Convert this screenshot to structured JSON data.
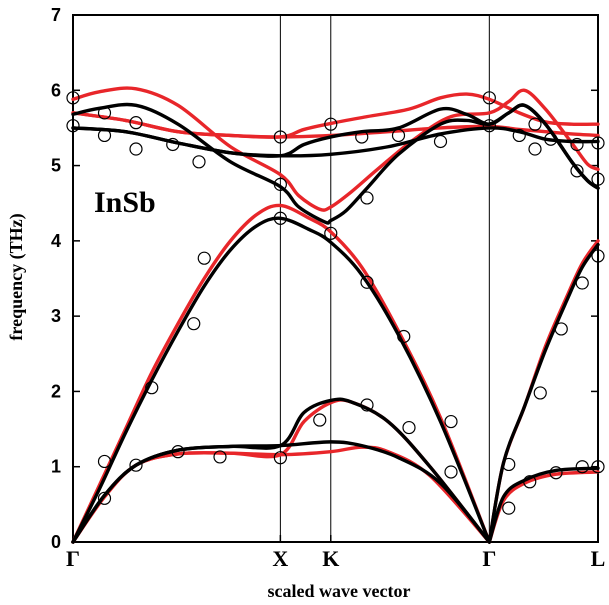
{
  "chart_data": {
    "type": "line",
    "title": "",
    "xlabel": "scaled wave vector",
    "ylabel": "frequency (THz)",
    "annotation": "InSb",
    "ylim": [
      0,
      7
    ],
    "yticks": [
      0,
      1,
      2,
      3,
      4,
      5,
      6,
      7
    ],
    "xlim": [
      0,
      1
    ],
    "xticks": [
      {
        "label": "Γ",
        "x": 0.0
      },
      {
        "label": "X",
        "x": 0.395
      },
      {
        "label": "K",
        "x": 0.491
      },
      {
        "label": "Γ",
        "x": 0.793
      },
      {
        "label": "L",
        "x": 1.0
      }
    ],
    "vlines": [
      0.395,
      0.491,
      0.793
    ],
    "colors": {
      "black_curve": "#000000",
      "red_curve": "#e8262a",
      "marker": "#000000"
    },
    "series": [
      {
        "color": "black",
        "values": [
          [
            0,
            0
          ],
          [
            0.06,
            0.62
          ],
          [
            0.12,
            1.02
          ],
          [
            0.2,
            1.22
          ],
          [
            0.3,
            1.27
          ],
          [
            0.395,
            1.28
          ],
          [
            0.491,
            1.33
          ],
          [
            0.55,
            1.28
          ],
          [
            0.62,
            1.12
          ],
          [
            0.7,
            0.78
          ],
          [
            0.793,
            0
          ]
        ]
      },
      {
        "color": "black",
        "values": [
          [
            0,
            0
          ],
          [
            0.06,
            0.62
          ],
          [
            0.12,
            1.02
          ],
          [
            0.2,
            1.22
          ],
          [
            0.3,
            1.27
          ],
          [
            0.395,
            1.28
          ],
          [
            0.44,
            1.72
          ],
          [
            0.491,
            1.88
          ],
          [
            0.53,
            1.86
          ],
          [
            0.6,
            1.6
          ],
          [
            0.68,
            1.0
          ],
          [
            0.793,
            0
          ]
        ]
      },
      {
        "color": "black",
        "values": [
          [
            0,
            0
          ],
          [
            0.05,
            0.7
          ],
          [
            0.1,
            1.45
          ],
          [
            0.15,
            2.15
          ],
          [
            0.2,
            2.8
          ],
          [
            0.25,
            3.4
          ],
          [
            0.3,
            3.88
          ],
          [
            0.35,
            4.2
          ],
          [
            0.395,
            4.3
          ],
          [
            0.45,
            4.15
          ],
          [
            0.491,
            3.98
          ],
          [
            0.55,
            3.55
          ],
          [
            0.62,
            2.75
          ],
          [
            0.7,
            1.6
          ],
          [
            0.793,
            0
          ]
        ]
      },
      {
        "color": "black",
        "values": [
          [
            0,
            5.68
          ],
          [
            0.05,
            5.76
          ],
          [
            0.12,
            5.8
          ],
          [
            0.2,
            5.55
          ],
          [
            0.3,
            5.05
          ],
          [
            0.395,
            4.72
          ],
          [
            0.43,
            4.45
          ],
          [
            0.48,
            4.25
          ],
          [
            0.491,
            4.27
          ],
          [
            0.52,
            4.4
          ],
          [
            0.56,
            4.7
          ],
          [
            0.62,
            5.15
          ],
          [
            0.7,
            5.55
          ],
          [
            0.75,
            5.6
          ],
          [
            0.793,
            5.55
          ],
          [
            0.83,
            5.7
          ],
          [
            0.86,
            5.8
          ],
          [
            0.9,
            5.55
          ],
          [
            0.95,
            5.05
          ],
          [
            0.98,
            4.8
          ],
          [
            1.0,
            4.7
          ]
        ]
      },
      {
        "color": "black",
        "values": [
          [
            0,
            5.5
          ],
          [
            0.1,
            5.45
          ],
          [
            0.2,
            5.3
          ],
          [
            0.3,
            5.17
          ],
          [
            0.395,
            5.13
          ],
          [
            0.491,
            5.15
          ],
          [
            0.6,
            5.25
          ],
          [
            0.7,
            5.42
          ],
          [
            0.793,
            5.5
          ],
          [
            0.85,
            5.45
          ],
          [
            0.9,
            5.35
          ],
          [
            0.95,
            5.32
          ],
          [
            1.0,
            5.32
          ]
        ]
      },
      {
        "color": "black",
        "values": [
          [
            0,
            5.5
          ],
          [
            0.1,
            5.45
          ],
          [
            0.2,
            5.3
          ],
          [
            0.3,
            5.17
          ],
          [
            0.395,
            5.13
          ],
          [
            0.44,
            5.28
          ],
          [
            0.491,
            5.38
          ],
          [
            0.55,
            5.45
          ],
          [
            0.62,
            5.5
          ],
          [
            0.7,
            5.75
          ],
          [
            0.75,
            5.68
          ],
          [
            0.793,
            5.55
          ],
          [
            0.83,
            5.7
          ],
          [
            0.86,
            5.8
          ],
          [
            0.9,
            5.55
          ],
          [
            0.95,
            5.05
          ],
          [
            0.98,
            4.8
          ],
          [
            1.0,
            4.7
          ]
        ]
      },
      {
        "color": "black",
        "values": [
          [
            0.793,
            0
          ],
          [
            0.82,
            0.6
          ],
          [
            0.86,
            0.82
          ],
          [
            0.92,
            0.95
          ],
          [
            1.0,
            0.98
          ]
        ]
      },
      {
        "color": "black",
        "values": [
          [
            0.793,
            0
          ],
          [
            0.82,
            1.05
          ],
          [
            0.86,
            1.8
          ],
          [
            0.9,
            2.55
          ],
          [
            0.94,
            3.2
          ],
          [
            0.97,
            3.65
          ],
          [
            1.0,
            3.95
          ]
        ]
      },
      {
        "color": "red",
        "values": [
          [
            0,
            0
          ],
          [
            0.06,
            0.6
          ],
          [
            0.12,
            1.02
          ],
          [
            0.2,
            1.17
          ],
          [
            0.3,
            1.18
          ],
          [
            0.395,
            1.16
          ],
          [
            0.491,
            1.2
          ],
          [
            0.55,
            1.26
          ],
          [
            0.6,
            1.2
          ],
          [
            0.68,
            0.88
          ],
          [
            0.793,
            0
          ]
        ]
      },
      {
        "color": "red",
        "values": [
          [
            0,
            0
          ],
          [
            0.06,
            0.6
          ],
          [
            0.12,
            1.02
          ],
          [
            0.2,
            1.17
          ],
          [
            0.3,
            1.18
          ],
          [
            0.395,
            1.16
          ],
          [
            0.44,
            1.6
          ],
          [
            0.491,
            1.85
          ],
          [
            0.53,
            1.86
          ],
          [
            0.6,
            1.6
          ],
          [
            0.68,
            1.0
          ],
          [
            0.793,
            0
          ]
        ]
      },
      {
        "color": "red",
        "values": [
          [
            0,
            0
          ],
          [
            0.05,
            0.75
          ],
          [
            0.1,
            1.5
          ],
          [
            0.15,
            2.25
          ],
          [
            0.2,
            2.9
          ],
          [
            0.25,
            3.5
          ],
          [
            0.3,
            4.0
          ],
          [
            0.35,
            4.35
          ],
          [
            0.395,
            4.47
          ],
          [
            0.45,
            4.3
          ],
          [
            0.491,
            4.12
          ],
          [
            0.55,
            3.65
          ],
          [
            0.62,
            2.8
          ],
          [
            0.7,
            1.65
          ],
          [
            0.793,
            0
          ]
        ]
      },
      {
        "color": "red",
        "values": [
          [
            0,
            5.88
          ],
          [
            0.05,
            5.98
          ],
          [
            0.12,
            6.02
          ],
          [
            0.2,
            5.8
          ],
          [
            0.3,
            5.25
          ],
          [
            0.395,
            4.88
          ],
          [
            0.43,
            4.6
          ],
          [
            0.47,
            4.42
          ],
          [
            0.491,
            4.45
          ],
          [
            0.53,
            4.65
          ],
          [
            0.58,
            4.95
          ],
          [
            0.65,
            5.35
          ],
          [
            0.72,
            5.65
          ],
          [
            0.793,
            5.7
          ],
          [
            0.83,
            5.85
          ],
          [
            0.86,
            6.0
          ],
          [
            0.9,
            5.75
          ],
          [
            0.95,
            5.3
          ],
          [
            0.98,
            5.02
          ],
          [
            1.0,
            4.95
          ]
        ]
      },
      {
        "color": "red",
        "values": [
          [
            0,
            5.7
          ],
          [
            0.1,
            5.6
          ],
          [
            0.2,
            5.45
          ],
          [
            0.3,
            5.4
          ],
          [
            0.395,
            5.38
          ],
          [
            0.44,
            5.48
          ],
          [
            0.491,
            5.56
          ],
          [
            0.56,
            5.65
          ],
          [
            0.64,
            5.75
          ],
          [
            0.7,
            5.9
          ],
          [
            0.75,
            5.95
          ],
          [
            0.793,
            5.88
          ],
          [
            0.85,
            5.7
          ],
          [
            0.9,
            5.58
          ],
          [
            0.95,
            5.55
          ],
          [
            1.0,
            5.55
          ]
        ]
      },
      {
        "color": "red",
        "values": [
          [
            0,
            5.7
          ],
          [
            0.1,
            5.6
          ],
          [
            0.2,
            5.45
          ],
          [
            0.3,
            5.4
          ],
          [
            0.395,
            5.38
          ],
          [
            0.491,
            5.4
          ],
          [
            0.6,
            5.45
          ],
          [
            0.7,
            5.5
          ],
          [
            0.793,
            5.52
          ],
          [
            0.85,
            5.48
          ],
          [
            0.9,
            5.45
          ],
          [
            0.95,
            5.42
          ],
          [
            1.0,
            5.4
          ]
        ]
      },
      {
        "color": "red",
        "values": [
          [
            0.793,
            0
          ],
          [
            0.82,
            0.55
          ],
          [
            0.86,
            0.78
          ],
          [
            0.92,
            0.9
          ],
          [
            1.0,
            0.93
          ]
        ]
      },
      {
        "color": "red",
        "values": [
          [
            0.793,
            0
          ],
          [
            0.82,
            1.05
          ],
          [
            0.86,
            1.8
          ],
          [
            0.9,
            2.6
          ],
          [
            0.94,
            3.25
          ],
          [
            0.97,
            3.7
          ],
          [
            1.0,
            4.0
          ]
        ]
      }
    ],
    "points": [
      [
        0,
        5.9
      ],
      [
        0,
        5.53
      ],
      [
        0.06,
        5.7
      ],
      [
        0.06,
        5.4
      ],
      [
        0.12,
        5.57
      ],
      [
        0.12,
        5.22
      ],
      [
        0.19,
        5.28
      ],
      [
        0.24,
        5.05
      ],
      [
        0.395,
        5.38
      ],
      [
        0.395,
        4.75
      ],
      [
        0.491,
        5.55
      ],
      [
        0.55,
        5.38
      ],
      [
        0.62,
        5.4
      ],
      [
        0.7,
        5.32
      ],
      [
        0.793,
        5.9
      ],
      [
        0.793,
        5.53
      ],
      [
        0.85,
        5.4
      ],
      [
        0.88,
        5.22
      ],
      [
        0.88,
        5.55
      ],
      [
        0.91,
        5.35
      ],
      [
        0.96,
        4.93
      ],
      [
        0.96,
        5.28
      ],
      [
        1.0,
        5.3
      ],
      [
        1.0,
        4.82
      ],
      [
        0.395,
        4.3
      ],
      [
        0.491,
        4.1
      ],
      [
        0.56,
        4.57
      ],
      [
        0.25,
        3.77
      ],
      [
        0.23,
        2.9
      ],
      [
        0.56,
        3.45
      ],
      [
        0.63,
        2.73
      ],
      [
        0.15,
        2.05
      ],
      [
        0.72,
        1.6
      ],
      [
        0.64,
        1.52
      ],
      [
        0.56,
        1.82
      ],
      [
        0.47,
        1.62
      ],
      [
        0.06,
        1.07
      ],
      [
        0.12,
        1.02
      ],
      [
        0.2,
        1.2
      ],
      [
        0.28,
        1.13
      ],
      [
        0.395,
        1.12
      ],
      [
        0.72,
        0.93
      ],
      [
        0.06,
        0.58
      ],
      [
        0.83,
        0.45
      ],
      [
        0.83,
        1.03
      ],
      [
        0.87,
        0.8
      ],
      [
        0.89,
        1.98
      ],
      [
        0.93,
        2.83
      ],
      [
        0.92,
        0.92
      ],
      [
        0.97,
        3.44
      ],
      [
        0.97,
        1.0
      ],
      [
        1.0,
        3.8
      ],
      [
        1.0,
        1.0
      ]
    ]
  }
}
